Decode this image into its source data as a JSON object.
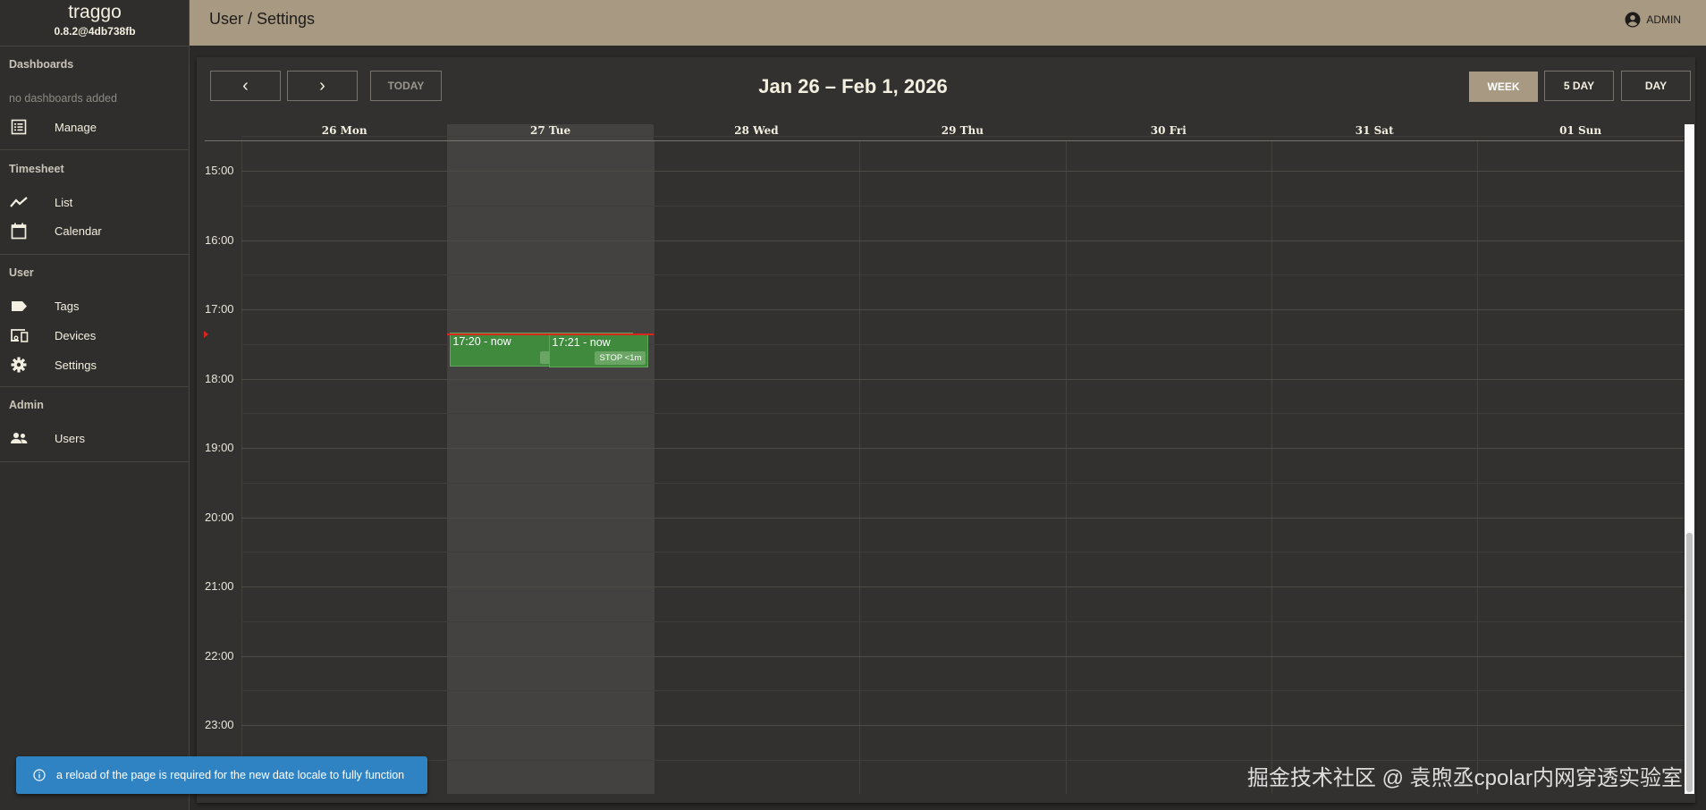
{
  "app": {
    "name": "traggo",
    "version": "0.8.2@4db738fb"
  },
  "sidebar": {
    "sections": [
      {
        "heading": "Dashboards",
        "empty": "no dashboards added",
        "items": [
          {
            "label": "Manage",
            "icon": "list-icon"
          }
        ]
      },
      {
        "heading": "Timesheet",
        "items": [
          {
            "label": "List",
            "icon": "trending-icon"
          },
          {
            "label": "Calendar",
            "icon": "calendar-icon"
          }
        ]
      },
      {
        "heading": "User",
        "items": [
          {
            "label": "Tags",
            "icon": "tag-icon"
          },
          {
            "label": "Devices",
            "icon": "devices-icon"
          },
          {
            "label": "Settings",
            "icon": "gear-icon"
          }
        ]
      },
      {
        "heading": "Admin",
        "items": [
          {
            "label": "Users",
            "icon": "users-icon"
          }
        ]
      }
    ]
  },
  "header": {
    "breadcrumb": "User / Settings",
    "user": "ADMIN"
  },
  "calendar": {
    "prev": "‹",
    "next": "›",
    "today": "TODAY",
    "title": "Jan 26 – Feb 1, 2026",
    "views": [
      {
        "label": "WEEK",
        "active": true
      },
      {
        "label": "5 DAY",
        "active": false
      },
      {
        "label": "DAY",
        "active": false
      }
    ],
    "days": [
      "26 Mon",
      "27 Tue",
      "28 Wed",
      "29 Thu",
      "30 Fri",
      "31 Sat",
      "01 Sun"
    ],
    "today_index": 1,
    "hours": [
      "15:00",
      "16:00",
      "17:00",
      "18:00",
      "19:00",
      "20:00",
      "21:00",
      "22:00",
      "23:00"
    ],
    "events": [
      {
        "label": "17:20 - now",
        "day": 1,
        "start": "17:20",
        "lane": 0
      },
      {
        "label": "17:21 - now",
        "day": 1,
        "start": "17:21",
        "lane": 1,
        "action": "STOP <1m"
      }
    ],
    "event_color": "#3f8a3c"
  },
  "toast": {
    "message": "a reload of the page is required for the new date locale to fully function",
    "icon": "info-icon",
    "color": "#2f83c3"
  },
  "watermark": "掘金技术社区 @ 袁煦丞cpolar内网穿透实验室"
}
